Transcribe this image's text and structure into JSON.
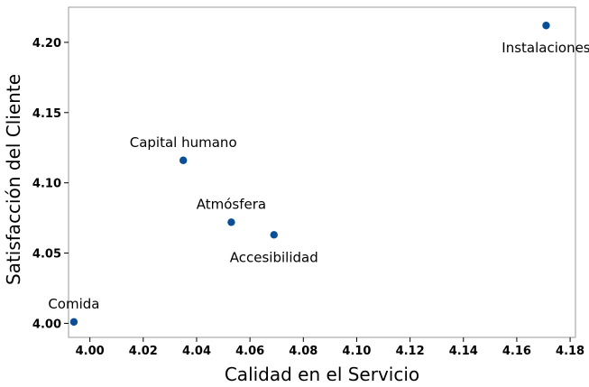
{
  "chart_data": {
    "type": "scatter",
    "title": "",
    "xlabel": "Calidad en el Servicio",
    "ylabel": "Satisfacción del Cliente",
    "xlim": [
      3.992,
      4.182
    ],
    "ylim": [
      3.99,
      4.225
    ],
    "x_ticks": [
      4.0,
      4.02,
      4.04,
      4.06,
      4.08,
      4.1,
      4.12,
      4.14,
      4.16,
      4.18
    ],
    "x_tick_labels": [
      "4.00",
      "4.02",
      "4.04",
      "4.06",
      "4.08",
      "4.10",
      "4.12",
      "4.14",
      "4.16",
      "4.18"
    ],
    "y_ticks": [
      4.0,
      4.05,
      4.1,
      4.15,
      4.2
    ],
    "y_tick_labels": [
      "4.00",
      "4.05",
      "4.10",
      "4.15",
      "4.20"
    ],
    "grid": false,
    "point_color": "#0a4f96",
    "points": [
      {
        "label": "Comida",
        "x": 3.994,
        "y": 4.001,
        "label_pos": "above"
      },
      {
        "label": "Capital humano",
        "x": 4.035,
        "y": 4.116,
        "label_pos": "above"
      },
      {
        "label": "Atmósfera",
        "x": 4.053,
        "y": 4.072,
        "label_pos": "above"
      },
      {
        "label": "Accesibilidad",
        "x": 4.069,
        "y": 4.063,
        "label_pos": "below"
      },
      {
        "label": "Instalaciones",
        "x": 4.171,
        "y": 4.212,
        "label_pos": "below"
      }
    ]
  }
}
